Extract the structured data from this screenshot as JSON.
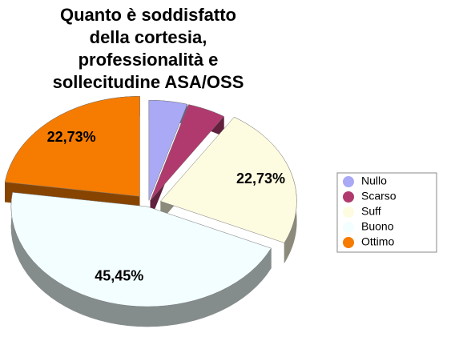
{
  "chart_data": {
    "type": "pie",
    "title": [
      "Quanto è soddisfatto",
      "della cortesia,",
      "professionalità e",
      "sollecitudine ASA/OSS"
    ],
    "categories": [
      "Nullo",
      "Scarso",
      "Suff",
      "Buono",
      "Ottimo"
    ],
    "values": [
      4.55,
      4.55,
      22.73,
      45.45,
      22.73
    ],
    "value_labels": [
      null,
      null,
      "22,73%",
      "45,45%",
      "22,73%"
    ],
    "colors": [
      "#a9a9f5",
      "#b03a6e",
      "#fdfbe0",
      "#f2feff",
      "#f57c00"
    ],
    "legend": "right"
  }
}
